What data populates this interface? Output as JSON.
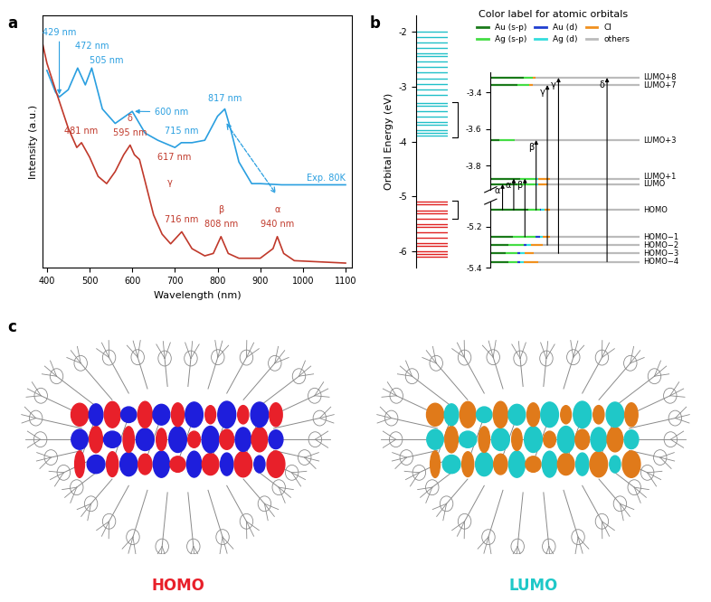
{
  "chart_data": [
    {
      "type": "line",
      "panel_label": "a",
      "x_label": "Wavelength (nm)",
      "y_label": "Intensity (a.u.)",
      "xlim": [
        390,
        1115
      ],
      "xticks": [
        400,
        500,
        600,
        700,
        800,
        900,
        1000,
        1100
      ],
      "ylim": [
        0,
        1.05
      ],
      "tick_labels": "x",
      "series": [
        {
          "name": "Exp. 80K",
          "color": "#2a9fe0",
          "x": [
            400,
            420,
            429,
            450,
            472,
            490,
            505,
            530,
            560,
            600,
            630,
            660,
            700,
            715,
            740,
            770,
            800,
            817,
            830,
            850,
            880,
            900,
            950,
            1000,
            1100
          ],
          "values": [
            0.82,
            0.73,
            0.71,
            0.74,
            0.83,
            0.76,
            0.83,
            0.66,
            0.6,
            0.65,
            0.56,
            0.53,
            0.5,
            0.52,
            0.52,
            0.53,
            0.63,
            0.66,
            0.58,
            0.44,
            0.35,
            0.35,
            0.345,
            0.345,
            0.345
          ]
        },
        {
          "color": "#c0392b",
          "x": [
            390,
            400,
            420,
            450,
            470,
            481,
            500,
            520,
            540,
            560,
            580,
            595,
            605,
            617,
            630,
            650,
            670,
            690,
            716,
            740,
            770,
            790,
            808,
            825,
            850,
            900,
            930,
            940,
            955,
            980,
            1100
          ],
          "values": [
            0.93,
            0.85,
            0.74,
            0.58,
            0.5,
            0.52,
            0.46,
            0.38,
            0.35,
            0.4,
            0.47,
            0.51,
            0.47,
            0.45,
            0.36,
            0.22,
            0.14,
            0.1,
            0.15,
            0.08,
            0.05,
            0.06,
            0.13,
            0.06,
            0.04,
            0.04,
            0.08,
            0.13,
            0.06,
            0.03,
            0.02
          ]
        }
      ],
      "annotations": [
        {
          "text": "429 nm",
          "x": 429,
          "series": 0
        },
        {
          "text": "472 nm",
          "x": 472,
          "series": 0
        },
        {
          "text": "505 nm",
          "x": 505,
          "series": 0
        },
        {
          "text": "600 nm",
          "x": 600,
          "series": 0
        },
        {
          "text": "715 nm",
          "x": 715,
          "series": 0
        },
        {
          "text": "817 nm",
          "x": 817,
          "series": 0
        },
        {
          "text": "481 nm",
          "x": 481,
          "series": 1
        },
        {
          "text": "δ",
          "x": 595,
          "series": 1
        },
        {
          "text": "595 nm",
          "x": 595,
          "series": 1
        },
        {
          "text": "617 nm",
          "x": 617,
          "series": 1
        },
        {
          "text": "γ",
          "x": 617,
          "series": 1
        },
        {
          "text": "716 nm",
          "x": 716,
          "series": 1
        },
        {
          "text": "β",
          "x": 808,
          "series": 1
        },
        {
          "text": "808 nm",
          "x": 808,
          "series": 1
        },
        {
          "text": "α",
          "x": 940,
          "series": 1
        },
        {
          "text": "940 nm",
          "x": 940,
          "series": 1
        }
      ]
    },
    {
      "type": "energy_levels",
      "panel_label": "b",
      "y_label": "Orbital Energy (eV)",
      "ylim": [
        -6.3,
        -1.7
      ],
      "yticks": [
        -2,
        -3,
        -4,
        -5,
        -6
      ],
      "tick_labels": "y",
      "unoccupied": {
        "color": "#20c0c8",
        "energies": [
          -2.0,
          -2.1,
          -2.2,
          -2.3,
          -2.4,
          -2.45,
          -2.55,
          -2.65,
          -2.75,
          -2.85,
          -2.95,
          -3.05,
          -3.15,
          -3.3,
          -3.35,
          -3.45,
          -3.55,
          -3.65,
          -3.7,
          -3.8,
          -3.85,
          -3.9
        ]
      },
      "occupied": {
        "color": "#e02020",
        "energies": [
          -5.1,
          -5.15,
          -5.25,
          -5.3,
          -5.4,
          -5.5,
          -5.55,
          -5.65,
          -5.75,
          -5.85,
          -5.9,
          -6.0,
          -6.05,
          -6.1
        ]
      }
    },
    {
      "type": "energy_levels",
      "segments": [
        {
          "ylim": [
            -3.93,
            -3.29
          ],
          "yticks": [
            -3.4,
            -3.6,
            -3.8
          ]
        },
        {
          "ylim": [
            -5.4,
            -5.08
          ],
          "yticks": [
            -5.2,
            -5.4
          ]
        }
      ],
      "legend_title": "Color label for atomic orbitals",
      "components": [
        {
          "name": "Au (s-p)",
          "color": "#1a7a1a"
        },
        {
          "name": "Ag (s-p)",
          "color": "#44dd44"
        },
        {
          "name": "Au (d)",
          "color": "#1f3fcf"
        },
        {
          "name": "Ag (d)",
          "color": "#33dddd"
        },
        {
          "name": "Cl",
          "color": "#f0901e"
        },
        {
          "name": "others",
          "color": "#bbbbbb"
        }
      ],
      "levels": [
        {
          "label": "LUMO+8",
          "energy": -3.32,
          "composition": [
            22,
            6,
            0,
            0,
            2,
            70
          ]
        },
        {
          "label": "LUMO+7",
          "energy": -3.36,
          "composition": [
            18,
            8,
            0,
            0,
            2,
            72
          ]
        },
        {
          "label": "LUMO+3",
          "energy": -3.66,
          "composition": [
            6,
            10,
            0,
            0,
            0,
            84
          ]
        },
        {
          "label": "LUMO+1",
          "energy": -3.87,
          "composition": [
            20,
            10,
            0,
            2,
            8,
            60
          ]
        },
        {
          "label": "LUMO",
          "energy": -3.9,
          "composition": [
            18,
            12,
            0,
            2,
            6,
            62
          ]
        },
        {
          "label": "HOMO",
          "energy": -5.12,
          "composition": [
            25,
            8,
            1,
            2,
            4,
            60
          ]
        },
        {
          "label": "HOMO−1",
          "energy": -5.25,
          "composition": [
            15,
            15,
            3,
            2,
            5,
            60
          ]
        },
        {
          "label": "HOMO−2",
          "energy": -5.29,
          "composition": [
            12,
            10,
            2,
            3,
            8,
            65
          ]
        },
        {
          "label": "HOMO−3",
          "energy": -5.33,
          "composition": [
            10,
            8,
            2,
            3,
            6,
            71
          ]
        },
        {
          "label": "HOMO−4",
          "energy": -5.37,
          "composition": [
            12,
            6,
            2,
            2,
            10,
            68
          ]
        }
      ],
      "transitions": [
        {
          "from": "HOMO",
          "to": "LUMO",
          "label": "α"
        },
        {
          "from": "HOMO",
          "to": "LUMO+1",
          "label": "α"
        },
        {
          "from": "HOMO−1",
          "to": "LUMO+1",
          "label": "β"
        },
        {
          "from": "HOMO",
          "to": "LUMO+3",
          "label": "β"
        },
        {
          "from": "HOMO−2",
          "to": "LUMO+7",
          "label": "γ"
        },
        {
          "from": "HOMO−3",
          "to": "LUMO+8",
          "label": "γ"
        },
        {
          "from": "HOMO−4",
          "to": "LUMO+8",
          "label": "δ"
        }
      ]
    }
  ],
  "orbital_images": {
    "panel_label": "c",
    "images": [
      {
        "title": "HOMO",
        "title_color": "#e8202a",
        "lobe_colors": [
          "#e8202a",
          "#1e1edc"
        ]
      },
      {
        "title": "LUMO",
        "title_color": "#1fc8c8",
        "lobe_colors": [
          "#e07a1a",
          "#1fc8c8"
        ]
      }
    ]
  }
}
